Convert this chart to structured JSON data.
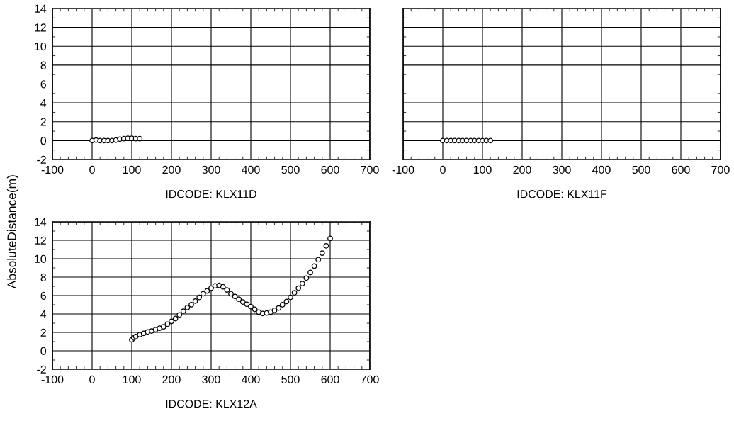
{
  "chart_data": [
    {
      "type": "scatter",
      "xlabel": "IDCODE: KLX11D",
      "ylabel": "AbsoluteDistance(m)",
      "xlim": [
        -100,
        700
      ],
      "xticks": [
        -100,
        0,
        100,
        200,
        300,
        400,
        500,
        600,
        700
      ],
      "ylim": [
        -2,
        14
      ],
      "yticks": [
        -2,
        0,
        2,
        4,
        6,
        8,
        10,
        12,
        14
      ],
      "grid": true,
      "marker": "circle",
      "series": [
        {
          "color": "#000000",
          "x": [
            0,
            10,
            20,
            30,
            40,
            50,
            60,
            70,
            80,
            90,
            100,
            110,
            120
          ],
          "values": [
            0,
            0.05,
            0,
            0,
            0,
            0,
            0.05,
            0.15,
            0.2,
            0.25,
            0.25,
            0.2,
            0.2
          ]
        }
      ]
    },
    {
      "type": "scatter",
      "xlabel": "IDCODE: KLX11F",
      "xlim": [
        -100,
        700
      ],
      "xticks": [
        -100,
        0,
        100,
        200,
        300,
        400,
        500,
        600,
        700
      ],
      "ylim": [
        -2,
        14
      ],
      "yticks": [
        -2,
        0,
        2,
        4,
        6,
        8,
        10,
        12,
        14
      ],
      "grid": true,
      "marker": "circle",
      "tick_labels": "x",
      "series": [
        {
          "color": "#000000",
          "x": [
            0,
            10,
            20,
            30,
            40,
            50,
            60,
            70,
            80,
            90,
            100,
            110,
            120
          ],
          "values": [
            0,
            0,
            0,
            0,
            0,
            0,
            0,
            0,
            0,
            0,
            0,
            0,
            0
          ]
        }
      ]
    },
    {
      "type": "scatter",
      "xlabel": "IDCODE: KLX12A",
      "xlim": [
        -100,
        700
      ],
      "xticks": [
        -100,
        0,
        100,
        200,
        300,
        400,
        500,
        600,
        700
      ],
      "ylim": [
        -2,
        14
      ],
      "yticks": [
        -2,
        0,
        2,
        4,
        6,
        8,
        10,
        12,
        14
      ],
      "grid": true,
      "marker": "circle",
      "series": [
        {
          "color": "#000000",
          "x": [
            100,
            105,
            110,
            120,
            130,
            140,
            150,
            160,
            170,
            180,
            190,
            200,
            210,
            220,
            230,
            240,
            250,
            260,
            270,
            280,
            290,
            300,
            310,
            320,
            330,
            340,
            350,
            360,
            370,
            380,
            390,
            400,
            410,
            420,
            430,
            440,
            450,
            460,
            470,
            480,
            490,
            500,
            510,
            520,
            530,
            540,
            550,
            560,
            570,
            580,
            590,
            600
          ],
          "values": [
            1.2,
            1.4,
            1.55,
            1.75,
            1.9,
            2.05,
            2.15,
            2.3,
            2.45,
            2.6,
            2.9,
            3.2,
            3.5,
            3.9,
            4.3,
            4.7,
            5.0,
            5.4,
            5.8,
            6.2,
            6.5,
            6.8,
            7.05,
            7.1,
            6.95,
            6.6,
            6.2,
            5.9,
            5.6,
            5.3,
            5.05,
            4.8,
            4.5,
            4.2,
            4.05,
            4.1,
            4.2,
            4.4,
            4.65,
            5.0,
            5.35,
            5.8,
            6.3,
            6.8,
            7.3,
            7.9,
            8.5,
            9.2,
            9.9,
            10.6,
            11.4,
            12.2
          ]
        }
      ]
    }
  ]
}
